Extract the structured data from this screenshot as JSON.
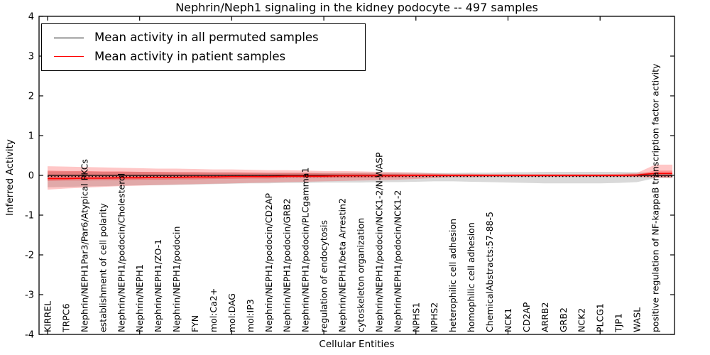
{
  "legend": {
    "items": [
      {
        "label": "Mean activity in all permuted samples",
        "color": "#000000"
      },
      {
        "label": "Mean activity in patient samples",
        "color": "#ff0000"
      }
    ]
  },
  "chart_data": {
    "type": "line",
    "title": "Nephrin/Neph1 signaling in the kidney podocyte -- 497 samples",
    "xlabel": "Cellular Entities",
    "ylabel": "Inferred Activity",
    "ylim": [
      -4,
      4
    ],
    "yticks": [
      4,
      3,
      2,
      1,
      0,
      -1,
      -2,
      -3,
      -4
    ],
    "grid": false,
    "legend_position": "upper left",
    "zero_line": {
      "style": "dotted",
      "color": "#000000",
      "y": 0
    },
    "categories": [
      "KIRREL",
      "TRPC6",
      "Nephrin/NEPH1Par3/Par6/Atypical PKCs",
      "establishment of cell polarity",
      "Nephrin/NEPH1/podocin/Cholesterol",
      "Nephrin/NEPH1",
      "Nephrin/NEPH1/ZO-1",
      "Nephrin/NEPH1/podocin",
      "FYN",
      "mol:Ca2+",
      "mol:DAG",
      "mol:IP3",
      "Nephrin/NEPH1/podocin/CD2AP",
      "Nephrin/NEPH1/podocin/GRB2",
      "Nephrin/NEPH1/podocin/PLCgamma1",
      "regulation of endocytosis",
      "Nephrin/NEPH1/beta Arrestin2",
      "cytoskeleton organization",
      "Nephrin/NEPH1/podocin/NCK1-2/N-WASP",
      "Nephrin/NEPH1/podocin/NCK1-2",
      "NPHS1",
      "NPHS2",
      "heterophilic cell adhesion",
      "homophilic cell adhesion",
      "ChemicalAbstracts:57-88-5",
      "NCK1",
      "CD2AP",
      "ARRB2",
      "GRB2",
      "NCK2",
      "PLCG1",
      "TJP1",
      "WASL",
      "positive regulation of NF-kappaB transcription factor activity"
    ],
    "bands": [
      {
        "name": "permuted-samples-band",
        "color": "#808080",
        "opacity": 0.3,
        "upper": [
          0.1,
          0.1,
          0.1,
          0.09,
          0.09,
          0.09,
          0.08,
          0.08,
          0.08,
          0.08,
          0.08,
          0.07,
          0.07,
          0.07,
          0.07,
          0.07,
          0.07,
          0.07,
          0.07,
          0.07,
          0.07,
          0.06,
          0.06,
          0.07,
          0.07,
          0.08,
          0.08,
          0.09,
          0.09,
          0.09,
          0.09,
          0.09,
          0.08,
          0.05
        ],
        "lower": [
          -0.3,
          -0.29,
          -0.28,
          -0.27,
          -0.26,
          -0.25,
          -0.25,
          -0.24,
          -0.23,
          -0.22,
          -0.21,
          -0.2,
          -0.2,
          -0.19,
          -0.19,
          -0.18,
          -0.18,
          -0.18,
          -0.17,
          -0.17,
          -0.16,
          -0.15,
          -0.15,
          -0.16,
          -0.17,
          -0.18,
          -0.19,
          -0.2,
          -0.2,
          -0.2,
          -0.2,
          -0.19,
          -0.17,
          -0.07
        ]
      },
      {
        "name": "patient-samples-outer-band",
        "color": "#ff0000",
        "opacity": 0.22,
        "upper": [
          0.23,
          0.22,
          0.21,
          0.2,
          0.19,
          0.18,
          0.17,
          0.17,
          0.16,
          0.15,
          0.15,
          0.14,
          0.13,
          0.13,
          0.12,
          0.11,
          0.11,
          0.1,
          0.09,
          0.08,
          0.07,
          0.05,
          0.04,
          0.04,
          0.03,
          0.03,
          0.03,
          0.03,
          0.03,
          0.03,
          0.03,
          0.04,
          0.06,
          0.27
        ],
        "lower": [
          -0.36,
          -0.33,
          -0.31,
          -0.29,
          -0.27,
          -0.26,
          -0.24,
          -0.23,
          -0.22,
          -0.21,
          -0.2,
          -0.19,
          -0.18,
          -0.17,
          -0.16,
          -0.15,
          -0.14,
          -0.13,
          -0.12,
          -0.11,
          -0.09,
          -0.07,
          -0.05,
          -0.05,
          -0.04,
          -0.04,
          -0.04,
          -0.04,
          -0.04,
          -0.04,
          -0.04,
          -0.04,
          -0.04,
          -0.06
        ]
      },
      {
        "name": "patient-samples-inner-band",
        "color": "#ff0000",
        "opacity": 0.26,
        "upper": [
          0.12,
          0.11,
          0.11,
          0.1,
          0.1,
          0.09,
          0.09,
          0.08,
          0.08,
          0.07,
          0.07,
          0.07,
          0.06,
          0.06,
          0.06,
          0.05,
          0.05,
          0.05,
          0.04,
          0.04,
          0.03,
          0.03,
          0.02,
          0.02,
          0.02,
          0.02,
          0.02,
          0.02,
          0.02,
          0.02,
          0.02,
          0.02,
          0.03,
          0.12
        ],
        "lower": [
          -0.14,
          -0.13,
          -0.13,
          -0.12,
          -0.12,
          -0.11,
          -0.11,
          -0.1,
          -0.1,
          -0.09,
          -0.09,
          -0.08,
          -0.08,
          -0.07,
          -0.07,
          -0.07,
          -0.06,
          -0.06,
          -0.06,
          -0.05,
          -0.05,
          -0.04,
          -0.03,
          -0.03,
          -0.03,
          -0.03,
          -0.03,
          -0.03,
          -0.03,
          -0.03,
          -0.03,
          -0.03,
          -0.03,
          -0.04
        ]
      }
    ],
    "series": [
      {
        "name": "Mean activity in all permuted samples",
        "color": "#000000",
        "width": 1.3,
        "values": [
          0,
          0,
          0,
          0,
          0,
          0,
          0,
          0,
          0,
          0,
          0,
          0,
          0,
          0,
          0,
          0,
          0,
          0,
          0,
          0,
          0,
          0,
          0,
          0,
          0,
          0,
          0,
          0,
          0,
          0,
          0,
          0,
          0,
          0
        ]
      },
      {
        "name": "Mean activity in patient samples",
        "color": "#ff0000",
        "width": 1.7,
        "values": [
          -0.08,
          -0.08,
          -0.07,
          -0.07,
          -0.06,
          -0.06,
          -0.05,
          -0.05,
          -0.04,
          -0.04,
          -0.03,
          -0.03,
          -0.03,
          -0.02,
          -0.02,
          -0.02,
          -0.01,
          -0.01,
          -0.01,
          -0.01,
          0,
          0,
          0,
          0,
          0,
          0,
          0,
          0,
          0,
          0,
          0,
          0,
          0.01,
          0.05
        ]
      }
    ]
  }
}
